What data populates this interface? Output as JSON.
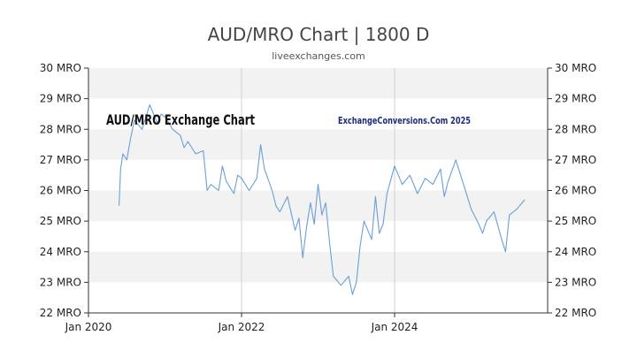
{
  "header": {
    "title": "AUD/MRO Chart | 1800 D",
    "subtitle": "liveexchanges.com"
  },
  "watermarks": {
    "chart_name": "AUD/MRO Exchange Chart",
    "site_credit": "ExchangeConversions.Com 2025"
  },
  "colors": {
    "line": "#6a9fd8",
    "band_shaded": "#f2f2f2",
    "band_plain": "#ffffff",
    "axis": "#333333",
    "vgrid": "#d0d0d0"
  },
  "chart_data": {
    "type": "line",
    "title": "AUD/MRO Chart | 1800 D",
    "subtitle": "liveexchanges.com",
    "xlabel": "",
    "ylabel": "",
    "x_tick_labels": [
      "Jan 2020",
      "Jan 2022",
      "Jan 2024"
    ],
    "x_tick_values": [
      2020.0,
      2022.0,
      2024.0
    ],
    "xlim": [
      2020.0,
      2026.0
    ],
    "ylim": [
      22,
      30
    ],
    "y_ticks": [
      22,
      23,
      24,
      25,
      26,
      27,
      28,
      29,
      30
    ],
    "y_tick_labels": [
      "22 MRO",
      "23 MRO",
      "24 MRO",
      "25 MRO",
      "26 MRO",
      "27 MRO",
      "28 MRO",
      "29 MRO",
      "30 MRO"
    ],
    "grid": "alternating horizontal bands, vertical lines at year ticks",
    "legend": "none",
    "series": [
      {
        "x": [
          2020.4,
          2020.42,
          2020.45,
          2020.5,
          2020.55,
          2020.6,
          2020.7,
          2020.8,
          2020.9,
          2020.95,
          2021.0,
          2021.1,
          2021.2,
          2021.25,
          2021.3,
          2021.4,
          2021.5,
          2021.55,
          2021.6,
          2021.7,
          2021.75,
          2021.8,
          2021.9,
          2021.95,
          2022.0,
          2022.1,
          2022.2,
          2022.25,
          2022.3,
          2022.4,
          2022.45,
          2022.5,
          2022.6,
          2022.7,
          2022.75,
          2022.8,
          2022.85,
          2022.9,
          2022.95,
          2023.0,
          2023.05,
          2023.1,
          2023.15,
          2023.2,
          2023.3,
          2023.4,
          2023.45,
          2023.5,
          2023.55,
          2023.6,
          2023.7,
          2023.75,
          2023.8,
          2023.85,
          2023.9,
          2024.0,
          2024.1,
          2024.2,
          2024.3,
          2024.4,
          2024.5,
          2024.6,
          2024.65,
          2024.7,
          2024.8,
          2024.9,
          2025.0,
          2025.1,
          2025.15,
          2025.2,
          2025.3,
          2025.4,
          2025.45,
          2025.5,
          2025.6,
          2025.7
        ],
        "y": [
          25.5,
          26.7,
          27.2,
          27.0,
          27.7,
          28.3,
          28.0,
          28.8,
          28.2,
          28.5,
          28.4,
          28.0,
          27.8,
          27.4,
          27.6,
          27.2,
          27.3,
          26.0,
          26.2,
          26.0,
          26.8,
          26.3,
          25.9,
          26.5,
          26.4,
          26.0,
          26.4,
          27.5,
          26.7,
          26.0,
          25.5,
          25.3,
          25.8,
          24.7,
          25.1,
          23.8,
          24.8,
          25.6,
          24.9,
          26.2,
          25.2,
          25.6,
          24.3,
          23.2,
          22.9,
          23.2,
          22.6,
          23.0,
          24.2,
          25.0,
          24.4,
          25.8,
          24.6,
          24.9,
          25.9,
          26.8,
          26.2,
          26.5,
          25.9,
          26.4,
          26.2,
          26.7,
          25.8,
          26.3,
          27.0,
          26.2,
          25.4,
          24.9,
          24.6,
          25.0,
          25.3,
          24.4,
          24.0,
          25.2,
          25.4,
          25.7
        ]
      }
    ]
  }
}
